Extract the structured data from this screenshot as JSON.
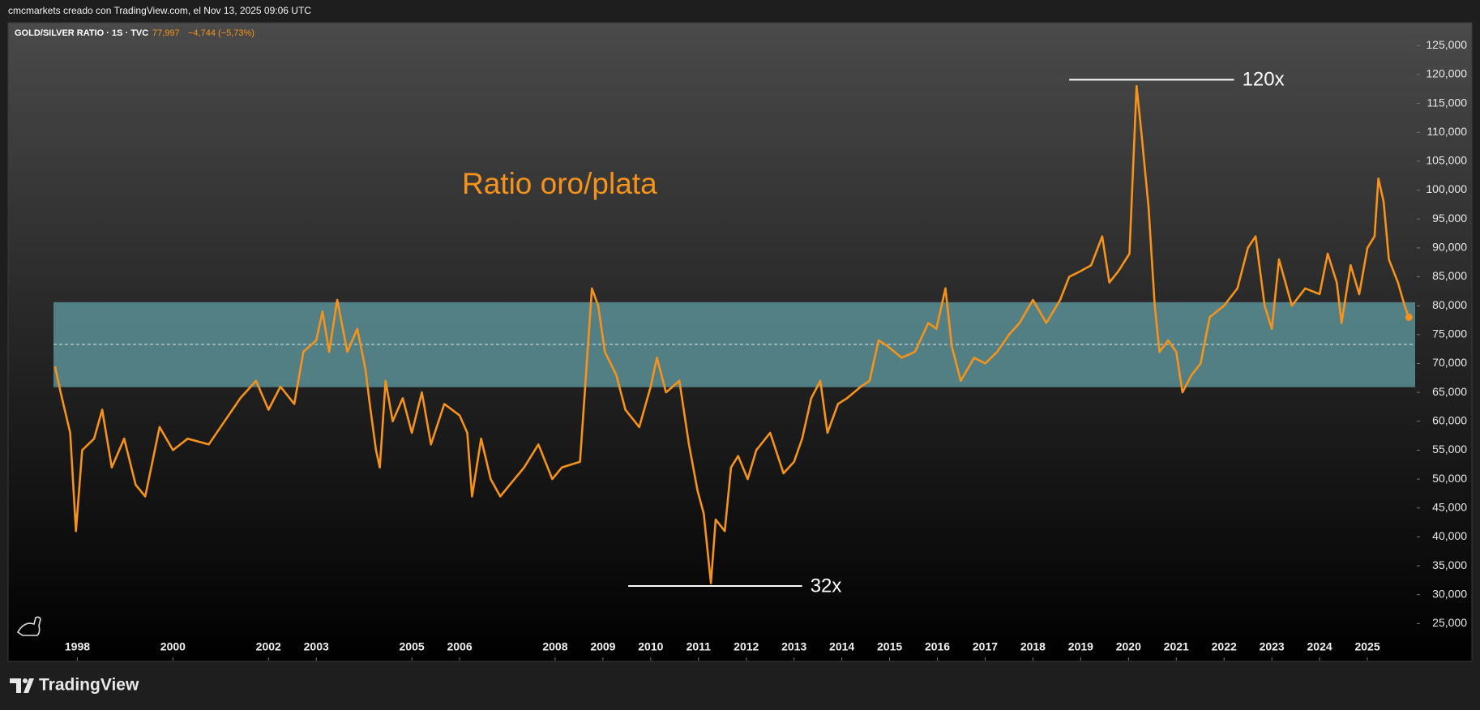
{
  "chart_data": {
    "type": "line",
    "header": "cmcmarkets creado con TradingView.com, el Nov 13, 2025 09:06 UTC",
    "symbol": "GOLD/SILVER RATIO · 1S · TVC",
    "last_value": {
      "value": 77.997,
      "label": "77,997"
    },
    "change": "−4,744 (−5,73%)",
    "title": "Ratio oro/plata",
    "brand": "TradingView",
    "xlim": [
      1997.5,
      2026.0
    ],
    "xticks": [
      1998,
      2000,
      2002,
      2003,
      2005,
      2006,
      2008,
      2009,
      2010,
      2011,
      2012,
      2013,
      2014,
      2015,
      2016,
      2017,
      2018,
      2019,
      2020,
      2021,
      2022,
      2023,
      2024,
      2025
    ],
    "ylim": [
      18.6,
      127
    ],
    "yticks": [
      {
        "value": 25,
        "label": "25,000"
      },
      {
        "value": 30,
        "label": "30,000"
      },
      {
        "value": 35,
        "label": "35,000"
      },
      {
        "value": 40,
        "label": "40,000"
      },
      {
        "value": 45,
        "label": "45,000"
      },
      {
        "value": 50,
        "label": "50,000"
      },
      {
        "value": 55,
        "label": "55,000"
      },
      {
        "value": 60,
        "label": "60,000"
      },
      {
        "value": 65,
        "label": "65,000"
      },
      {
        "value": 70,
        "label": "70,000"
      },
      {
        "value": 75,
        "label": "75,000"
      },
      {
        "value": 80,
        "label": "80,000"
      },
      {
        "value": 85,
        "label": "85,000"
      },
      {
        "value": 90,
        "label": "90,000"
      },
      {
        "value": 95,
        "label": "95,000"
      },
      {
        "value": 100,
        "label": "100,000"
      },
      {
        "value": 105,
        "label": "105,000"
      },
      {
        "value": 110,
        "label": "110,000"
      },
      {
        "value": 115,
        "label": "115,000"
      },
      {
        "value": 120,
        "label": "120,000"
      },
      {
        "value": 125,
        "label": "125,000"
      }
    ],
    "band": {
      "from": 65.9,
      "to": 80.6,
      "mid": 73.3,
      "color": "#5a8f95"
    },
    "annotations": [
      {
        "text": "120x",
        "y": 119.1,
        "x": [
          2018.76,
          2022.21
        ]
      },
      {
        "text": "32x",
        "y": 31.5,
        "x": [
          2009.53,
          2013.17
        ]
      }
    ],
    "series": [
      {
        "name": "GOLD/SILVER RATIO",
        "color": "#f7931a",
        "x": [
          1997.53,
          1997.65,
          1997.85,
          1997.97,
          1998.1,
          1998.35,
          1998.52,
          1998.72,
          1998.98,
          1999.22,
          1999.42,
          1999.72,
          2000.0,
          2000.31,
          2000.75,
          2001.08,
          2001.41,
          2001.74,
          2002.0,
          2002.25,
          2002.54,
          2002.73,
          2003.0,
          2003.13,
          2003.27,
          2003.44,
          2003.65,
          2003.86,
          2004.03,
          2004.12,
          2004.25,
          2004.33,
          2004.45,
          2004.6,
          2004.81,
          2005.0,
          2005.21,
          2005.4,
          2005.68,
          2006.0,
          2006.16,
          2006.26,
          2006.45,
          2006.65,
          2006.85,
          2007.05,
          2007.35,
          2007.65,
          2007.94,
          2008.14,
          2008.52,
          2008.62,
          2008.77,
          2008.9,
          2009.04,
          2009.28,
          2009.47,
          2009.76,
          2010.0,
          2010.13,
          2010.32,
          2010.6,
          2010.8,
          2010.98,
          2011.11,
          2011.26,
          2011.36,
          2011.55,
          2011.68,
          2011.83,
          2012.03,
          2012.21,
          2012.5,
          2012.78,
          2013.0,
          2013.17,
          2013.36,
          2013.55,
          2013.7,
          2013.92,
          2014.11,
          2014.4,
          2014.58,
          2014.77,
          2014.96,
          2015.25,
          2015.53,
          2015.81,
          2015.98,
          2016.17,
          2016.3,
          2016.49,
          2016.77,
          2017.0,
          2017.25,
          2017.5,
          2017.72,
          2018.0,
          2018.28,
          2018.57,
          2018.76,
          2019.0,
          2019.22,
          2019.45,
          2019.6,
          2019.79,
          2020.02,
          2020.17,
          2020.27,
          2020.42,
          2020.55,
          2020.65,
          2020.83,
          2021.0,
          2021.13,
          2021.32,
          2021.51,
          2021.7,
          2022.0,
          2022.28,
          2022.5,
          2022.66,
          2022.85,
          2023.0,
          2023.15,
          2023.42,
          2023.7,
          2024.0,
          2024.17,
          2024.36,
          2024.46,
          2024.65,
          2024.83,
          2025.0,
          2025.15,
          2025.23,
          2025.34,
          2025.45,
          2025.64,
          2025.78,
          2025.87
        ],
        "values": [
          69.5,
          65,
          58,
          41,
          55,
          57,
          62,
          52,
          57,
          49,
          47,
          59,
          55,
          57,
          56,
          60,
          64,
          67,
          62,
          66,
          63,
          72,
          74,
          79,
          72,
          81,
          72,
          76,
          69,
          63,
          55,
          52,
          67,
          60,
          64,
          58,
          65,
          56,
          63,
          61,
          58,
          47,
          57,
          50,
          47,
          49,
          52,
          56,
          50,
          52,
          53,
          65,
          83,
          80,
          72,
          68,
          62,
          59,
          66,
          71,
          65,
          67,
          56,
          48,
          44,
          32,
          43,
          41,
          52,
          54,
          50,
          55,
          58,
          51,
          53,
          57,
          64,
          67,
          58,
          63,
          64,
          66,
          67,
          74,
          73,
          71,
          72,
          77,
          76,
          83,
          73,
          67,
          71,
          70,
          72,
          75,
          77,
          81,
          77,
          81,
          85,
          86,
          87,
          92,
          84,
          86,
          89,
          118,
          110,
          97,
          80,
          72,
          74,
          72,
          65,
          68,
          70,
          78,
          80,
          83,
          90,
          92,
          80,
          76,
          88,
          80,
          83,
          82,
          89,
          84,
          77,
          87,
          82,
          90,
          92,
          102,
          98,
          88,
          84,
          80,
          78
        ]
      }
    ]
  }
}
